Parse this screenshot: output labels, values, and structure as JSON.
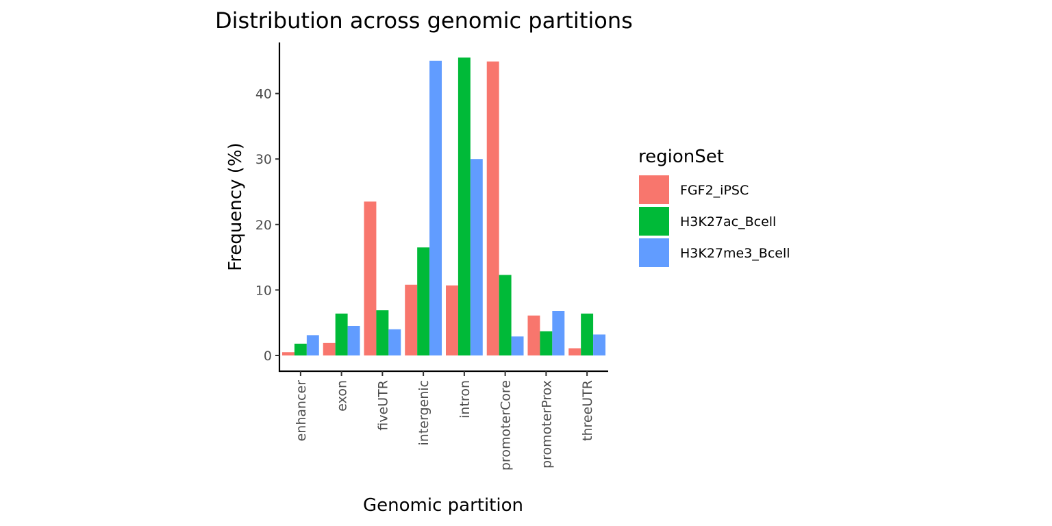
{
  "chart_data": {
    "type": "bar",
    "title": "Distribution across genomic partitions",
    "xlabel": "Genomic partition",
    "ylabel": "Frequency (%)",
    "categories": [
      "enhancer",
      "exon",
      "fiveUTR",
      "intergenic",
      "intron",
      "promoterCore",
      "promoterProx",
      "threeUTR"
    ],
    "series": [
      {
        "name": "FGF2_iPSC",
        "color": "#F8766D",
        "values": [
          0.5,
          1.9,
          23.5,
          10.8,
          10.7,
          44.9,
          6.1,
          1.1
        ]
      },
      {
        "name": "H3K27ac_Bcell",
        "color": "#00BA38",
        "values": [
          1.8,
          6.4,
          6.9,
          16.5,
          45.5,
          12.3,
          3.7,
          6.4
        ]
      },
      {
        "name": "H3K27me3_Bcell",
        "color": "#619CFF",
        "values": [
          3.1,
          4.5,
          4.0,
          45.0,
          30.0,
          2.9,
          6.8,
          3.2
        ]
      }
    ],
    "yticks": [
      "0",
      "10",
      "20",
      "30",
      "40"
    ],
    "ylim": [
      -2.3,
      47.8
    ],
    "legend": {
      "title": "regionSet",
      "placement": "right"
    },
    "grid": false
  }
}
